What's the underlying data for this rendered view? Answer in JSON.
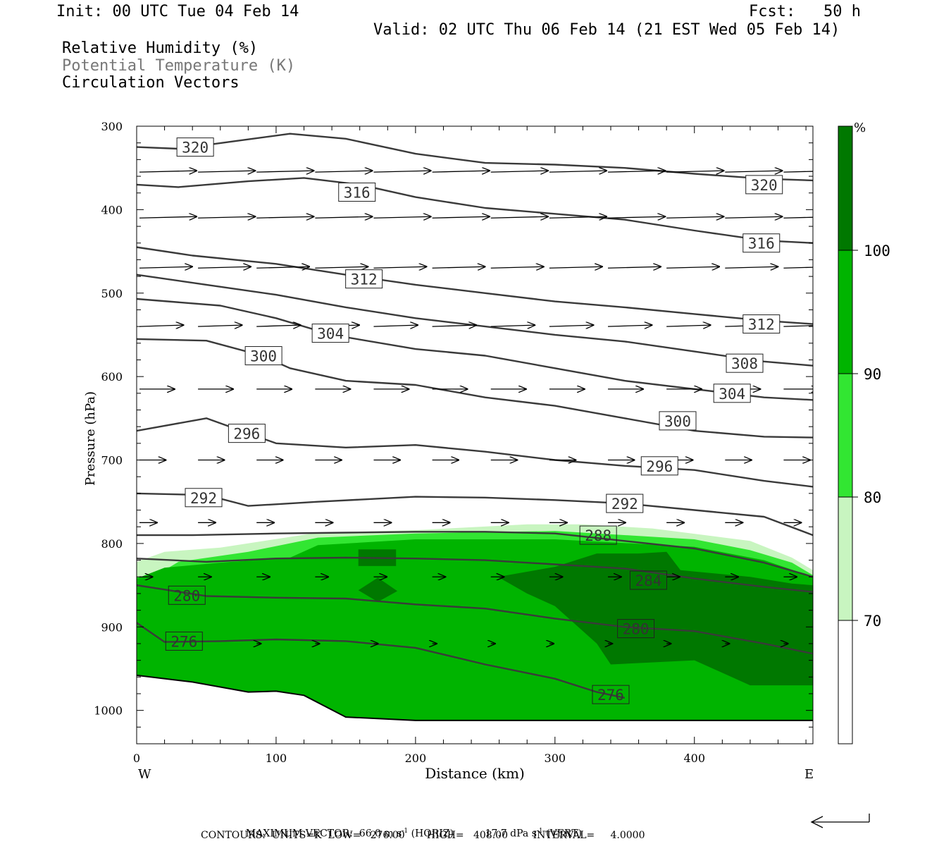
{
  "header": {
    "init": "Init: 00 UTC Tue 04 Feb 14",
    "fcst": "Fcst:   50 h",
    "valid": "Valid: 02 UTC Thu 06 Feb 14 (21 EST Wed 05 Feb 14)",
    "fields": [
      "Relative Humidity (%)",
      "Potential Temperature (K)",
      "Circulation Vectors"
    ]
  },
  "chart_data": {
    "type": "contour",
    "xlabel": "Distance (km)",
    "ylabel": "Pressure (hPa)",
    "xlim": [
      0,
      485
    ],
    "ylim": [
      1040,
      300
    ],
    "x_ticks": [
      0,
      100,
      200,
      300,
      400
    ],
    "y_ticks": [
      300,
      400,
      500,
      600,
      700,
      800,
      900,
      1000
    ],
    "x_end_labels": {
      "left": "W",
      "right": "E"
    },
    "colorbar": {
      "unit": "%",
      "levels": [
        70,
        80,
        90,
        100
      ],
      "colors": [
        "#ffffff",
        "#c8f5c0",
        "#32e632",
        "#00b400",
        "#007800"
      ]
    },
    "theta_contours": [
      {
        "value": 320,
        "points": [
          [
            0,
            325
          ],
          [
            30,
            327
          ],
          [
            70,
            318
          ],
          [
            110,
            309
          ],
          [
            150,
            315
          ],
          [
            200,
            333
          ],
          [
            250,
            344
          ],
          [
            300,
            346
          ],
          [
            350,
            350
          ],
          [
            400,
            357
          ],
          [
            450,
            363
          ],
          [
            485,
            365
          ]
        ],
        "labels": [
          [
            42,
            325
          ],
          [
            450,
            370
          ]
        ]
      },
      {
        "value": 316,
        "points": [
          [
            0,
            370
          ],
          [
            30,
            373
          ],
          [
            80,
            366
          ],
          [
            120,
            362
          ],
          [
            160,
            370
          ],
          [
            200,
            385
          ],
          [
            250,
            398
          ],
          [
            300,
            405
          ],
          [
            350,
            412
          ],
          [
            400,
            425
          ],
          [
            450,
            437
          ],
          [
            485,
            440
          ]
        ],
        "labels": [
          [
            158,
            379
          ],
          [
            448,
            440
          ]
        ]
      },
      {
        "value": 312,
        "points": [
          [
            0,
            445
          ],
          [
            40,
            455
          ],
          [
            100,
            465
          ],
          [
            150,
            478
          ],
          [
            200,
            490
          ],
          [
            250,
            500
          ],
          [
            300,
            510
          ],
          [
            350,
            517
          ],
          [
            400,
            525
          ],
          [
            450,
            533
          ],
          [
            485,
            537
          ]
        ],
        "labels": [
          [
            163,
            483
          ],
          [
            448,
            537
          ]
        ]
      },
      {
        "value": 308,
        "points": [
          [
            0,
            478
          ],
          [
            50,
            490
          ],
          [
            100,
            502
          ],
          [
            150,
            517
          ],
          [
            200,
            530
          ],
          [
            250,
            540
          ],
          [
            300,
            550
          ],
          [
            350,
            558
          ],
          [
            400,
            570
          ],
          [
            450,
            582
          ],
          [
            485,
            587
          ]
        ],
        "labels": [
          [
            436,
            584
          ]
        ]
      },
      {
        "value": 304,
        "points": [
          [
            0,
            507
          ],
          [
            60,
            515
          ],
          [
            100,
            530
          ],
          [
            140,
            550
          ],
          [
            200,
            567
          ],
          [
            250,
            575
          ],
          [
            300,
            590
          ],
          [
            350,
            605
          ],
          [
            400,
            615
          ],
          [
            450,
            625
          ],
          [
            485,
            628
          ]
        ],
        "labels": [
          [
            139,
            548
          ],
          [
            427,
            620
          ]
        ]
      },
      {
        "value": 300,
        "points": [
          [
            0,
            555
          ],
          [
            50,
            557
          ],
          [
            90,
            575
          ],
          [
            110,
            590
          ],
          [
            150,
            605
          ],
          [
            200,
            610
          ],
          [
            250,
            625
          ],
          [
            300,
            635
          ],
          [
            350,
            650
          ],
          [
            400,
            665
          ],
          [
            450,
            672
          ],
          [
            485,
            673
          ]
        ],
        "labels": [
          [
            91,
            575
          ],
          [
            388,
            653
          ]
        ]
      },
      {
        "value": 296,
        "points": [
          [
            0,
            665
          ],
          [
            50,
            650
          ],
          [
            100,
            680
          ],
          [
            150,
            685
          ],
          [
            200,
            682
          ],
          [
            250,
            690
          ],
          [
            300,
            700
          ],
          [
            350,
            707
          ],
          [
            400,
            712
          ],
          [
            450,
            725
          ],
          [
            485,
            732
          ]
        ],
        "labels": [
          [
            79,
            668
          ],
          [
            375,
            707
          ]
        ]
      },
      {
        "value": 292,
        "points": [
          [
            0,
            740
          ],
          [
            50,
            742
          ],
          [
            80,
            755
          ],
          [
            130,
            750
          ],
          [
            200,
            744
          ],
          [
            250,
            745
          ],
          [
            300,
            748
          ],
          [
            350,
            752
          ],
          [
            400,
            760
          ],
          [
            450,
            768
          ],
          [
            485,
            790
          ]
        ],
        "labels": [
          [
            48,
            745
          ],
          [
            350,
            752
          ]
        ]
      },
      {
        "value": 288,
        "points": [
          [
            0,
            790
          ],
          [
            40,
            790
          ],
          [
            100,
            788
          ],
          [
            150,
            787
          ],
          [
            200,
            786
          ],
          [
            250,
            786
          ],
          [
            300,
            788
          ],
          [
            350,
            797
          ],
          [
            400,
            806
          ],
          [
            450,
            823
          ],
          [
            485,
            840
          ]
        ],
        "labels": [
          [
            331,
            790
          ]
        ]
      },
      {
        "value": 284,
        "points": [
          [
            0,
            818
          ],
          [
            50,
            822
          ],
          [
            100,
            818
          ],
          [
            150,
            817
          ],
          [
            200,
            818
          ],
          [
            250,
            820
          ],
          [
            300,
            825
          ],
          [
            350,
            830
          ],
          [
            400,
            842
          ],
          [
            450,
            852
          ],
          [
            485,
            858
          ]
        ],
        "labels": [
          [
            367,
            844
          ]
        ]
      },
      {
        "value": 280,
        "points": [
          [
            0,
            850
          ],
          [
            50,
            863
          ],
          [
            100,
            865
          ],
          [
            150,
            866
          ],
          [
            200,
            873
          ],
          [
            250,
            878
          ],
          [
            300,
            890
          ],
          [
            350,
            900
          ],
          [
            400,
            905
          ],
          [
            450,
            920
          ],
          [
            485,
            932
          ]
        ],
        "labels": [
          [
            36,
            862
          ],
          [
            358,
            902
          ]
        ]
      },
      {
        "value": 276,
        "points": [
          [
            0,
            895
          ],
          [
            20,
            918
          ],
          [
            60,
            917
          ],
          [
            100,
            915
          ],
          [
            150,
            917
          ],
          [
            200,
            925
          ],
          [
            250,
            945
          ],
          [
            300,
            962
          ],
          [
            330,
            978
          ],
          [
            350,
            985
          ]
        ],
        "labels": [
          [
            34,
            917
          ],
          [
            340,
            981
          ]
        ]
      }
    ],
    "surface_pressure": [
      [
        0,
        958
      ],
      [
        40,
        966
      ],
      [
        80,
        978
      ],
      [
        100,
        977
      ],
      [
        120,
        982
      ],
      [
        150,
        1008
      ],
      [
        200,
        1012
      ],
      [
        300,
        1012
      ],
      [
        400,
        1012
      ],
      [
        485,
        1012
      ]
    ],
    "rh_regions": [
      {
        "rh": 80,
        "points": [
          [
            0,
            822
          ],
          [
            20,
            810
          ],
          [
            60,
            805
          ],
          [
            130,
            787
          ],
          [
            200,
            784
          ],
          [
            280,
            777
          ],
          [
            320,
            777
          ],
          [
            370,
            782
          ],
          [
            440,
            797
          ],
          [
            470,
            817
          ],
          [
            485,
            832
          ],
          [
            485,
            1012
          ],
          [
            0,
            1012
          ]
        ]
      },
      {
        "rh": 90,
        "points": [
          [
            0,
            832
          ],
          [
            0,
            840
          ],
          [
            10,
            842
          ],
          [
            30,
            822
          ],
          [
            80,
            810
          ],
          [
            130,
            793
          ],
          [
            200,
            788
          ],
          [
            300,
            785
          ],
          [
            400,
            795
          ],
          [
            440,
            808
          ],
          [
            470,
            823
          ],
          [
            485,
            838
          ],
          [
            485,
            1012
          ],
          [
            0,
            1012
          ]
        ]
      },
      {
        "rh": 100,
        "points": [
          [
            0,
            842
          ],
          [
            20,
            829
          ],
          [
            60,
            823
          ],
          [
            110,
            817
          ],
          [
            130,
            802
          ],
          [
            200,
            795
          ],
          [
            300,
            795
          ],
          [
            400,
            804
          ],
          [
            450,
            820
          ],
          [
            485,
            840
          ],
          [
            485,
            1012
          ],
          [
            0,
            1012
          ]
        ]
      }
    ],
    "rh_max_regions": [
      [
        [
          159,
          807
        ],
        [
          159,
          827
        ],
        [
          186,
          827
        ],
        [
          186,
          807
        ]
      ],
      [
        [
          159,
          856
        ],
        [
          173,
          841
        ],
        [
          187,
          857
        ],
        [
          173,
          870
        ],
        [
          159,
          856
        ]
      ],
      [
        [
          259,
          840
        ],
        [
          300,
          828
        ],
        [
          330,
          812
        ],
        [
          360,
          812
        ],
        [
          380,
          810
        ],
        [
          390,
          832
        ],
        [
          440,
          840
        ],
        [
          470,
          848
        ],
        [
          485,
          850
        ],
        [
          485,
          970
        ],
        [
          440,
          970
        ],
        [
          400,
          940
        ],
        [
          340,
          945
        ],
        [
          330,
          920
        ],
        [
          300,
          875
        ],
        [
          280,
          860
        ],
        [
          259,
          840
        ]
      ]
    ],
    "vectors_rows": [
      {
        "p": 355,
        "x": [
          0,
          42,
          84,
          126,
          168,
          210,
          252,
          294,
          336,
          378,
          420,
          462
        ],
        "u": 65,
        "w": -1
      },
      {
        "p": 410,
        "x": [
          0,
          42,
          84,
          126,
          168,
          210,
          252,
          294,
          336,
          378,
          420,
          462
        ],
        "u": 65,
        "w": -1
      },
      {
        "p": 470,
        "x": [
          0,
          42,
          84,
          126,
          168,
          210,
          252,
          294,
          336,
          378,
          420,
          462
        ],
        "u": 60,
        "w": -1
      },
      {
        "p": 540,
        "x": [
          0,
          42,
          84,
          126,
          168,
          210,
          252,
          294,
          336,
          378,
          420,
          462
        ],
        "u": 50,
        "w": -1
      },
      {
        "p": 615,
        "x": [
          0,
          42,
          84,
          126,
          168,
          210,
          252,
          294,
          336,
          378,
          420,
          462
        ],
        "u": 40,
        "w": 0
      },
      {
        "p": 700,
        "x": [
          0,
          42,
          84,
          126,
          168,
          210,
          252,
          294,
          336,
          378,
          420,
          462
        ],
        "u": 30,
        "w": 0
      },
      {
        "p": 775,
        "x": [
          0,
          42,
          84,
          126,
          168,
          210,
          252,
          294,
          336,
          378,
          420,
          462
        ],
        "u": 20,
        "w": 0
      },
      {
        "p": 840,
        "x": [
          0,
          42,
          84,
          126,
          168,
          210,
          252,
          294,
          336,
          378,
          420,
          462
        ],
        "u": 15,
        "w": 0
      },
      {
        "p": 920,
        "x": [
          84,
          126,
          168,
          210,
          252,
          294,
          336,
          378,
          420,
          462
        ],
        "u": 5,
        "w": 0
      }
    ]
  },
  "footer": {
    "max_vector_label": "MAXIMUM VECTOR:",
    "horiz_value": "66.0 m s",
    "horiz_exp": "-1",
    "horiz_tag": "(HORIZ)",
    "vert_value": "17.7 dPa s",
    "vert_exp": "-1",
    "vert_tag": "(VERT)",
    "contours": "CONTOURS:  UNITS=K  LOW=   276.00       HIGH=   408.00        INTERVAL=     4.0000"
  }
}
